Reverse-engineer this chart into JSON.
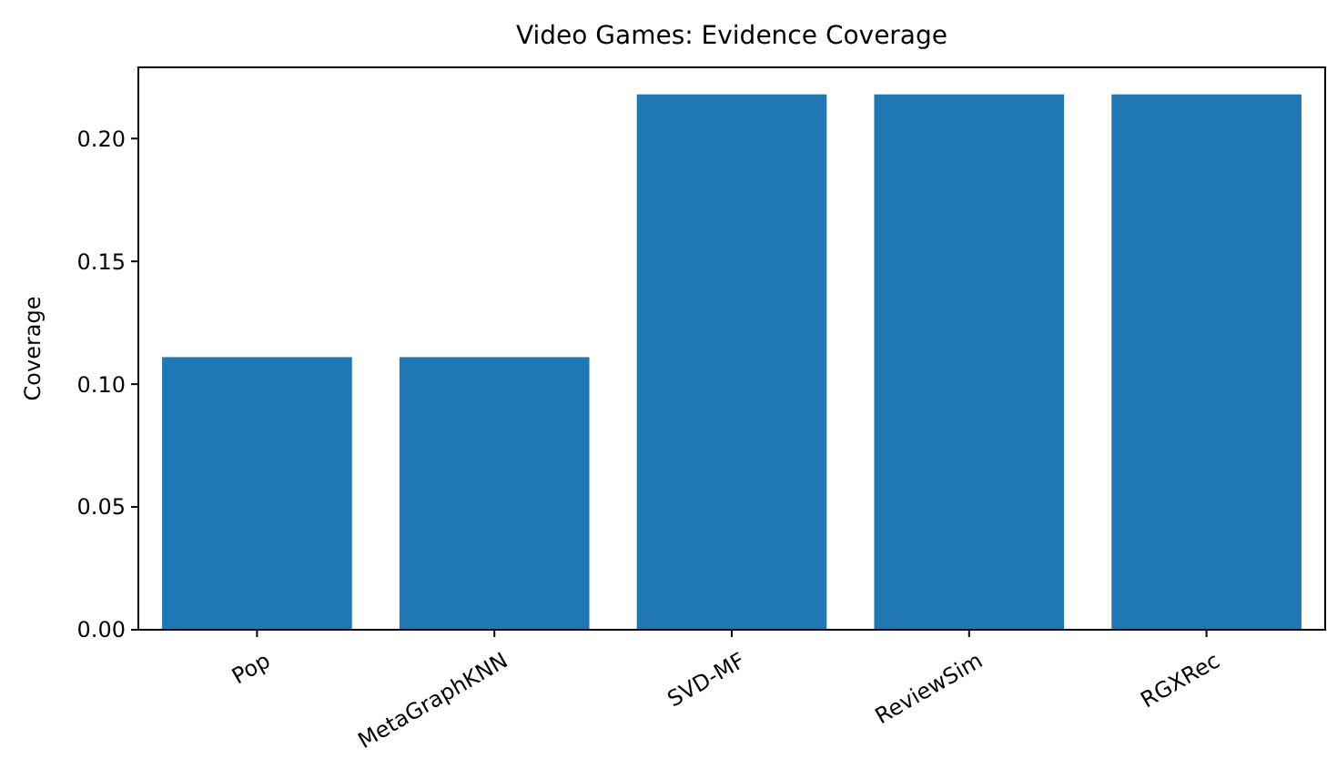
{
  "chart_data": {
    "type": "bar",
    "title": "Video Games: Evidence Coverage",
    "ylabel": "Coverage",
    "categories": [
      "Pop",
      "MetaGraphKNN",
      "SVD-MF",
      "ReviewSim",
      "RGXRec"
    ],
    "values": [
      0.111,
      0.111,
      0.218,
      0.218,
      0.218
    ],
    "color": "#1f77b4",
    "ylim": [
      0,
      0.229
    ],
    "yticks": [
      {
        "value": 0,
        "label": "0.00"
      },
      {
        "value": 0.05,
        "label": "0.05"
      },
      {
        "value": 0.1,
        "label": "0.10"
      },
      {
        "value": 0.15,
        "label": "0.15"
      },
      {
        "value": 0.2,
        "label": "0.20"
      }
    ],
    "grid": false
  }
}
